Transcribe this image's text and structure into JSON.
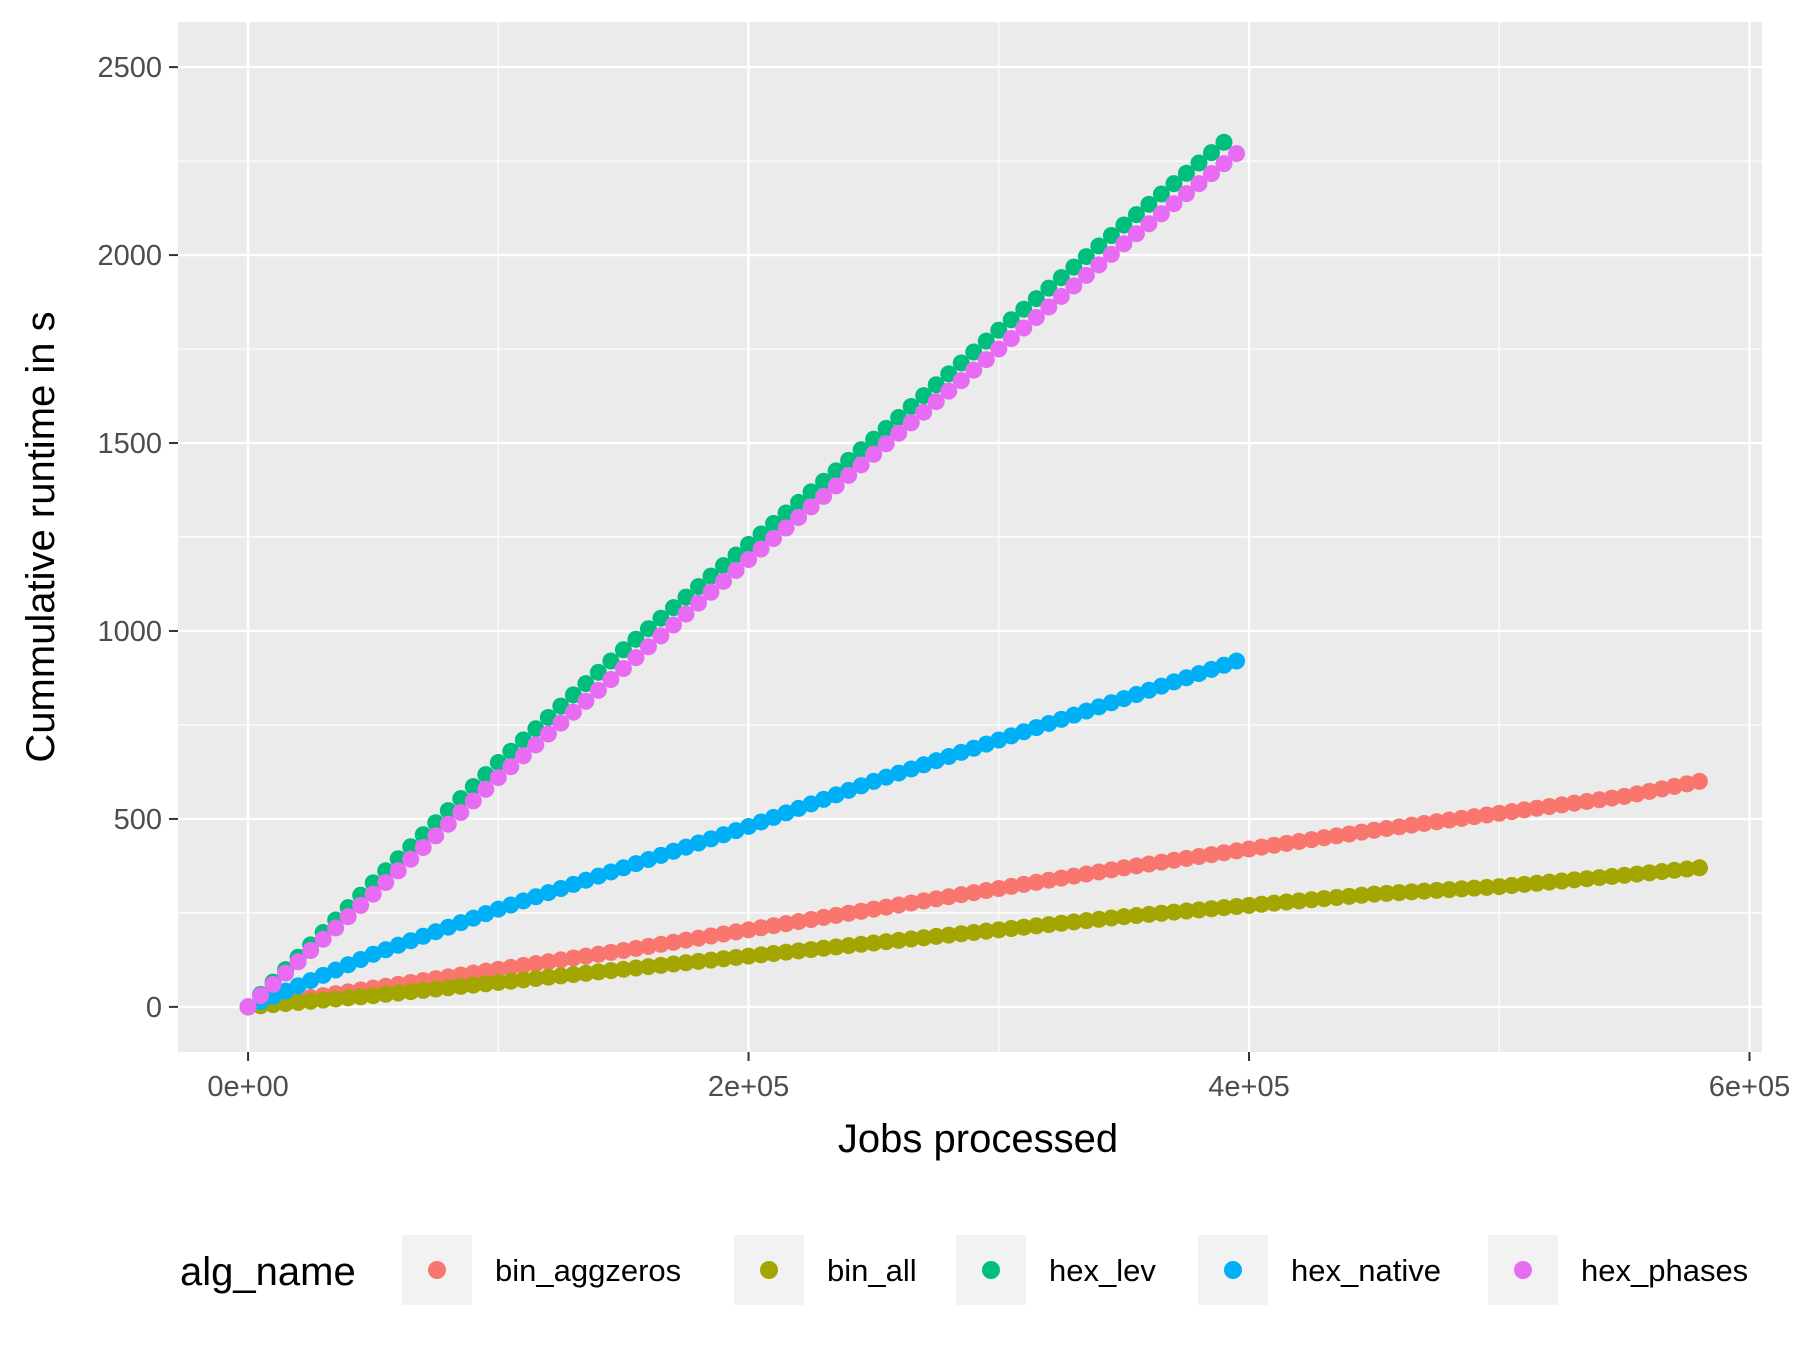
{
  "chart_data": {
    "type": "scatter",
    "title": "",
    "xlabel": "Jobs processed",
    "ylabel": "Cummulative runtime in s",
    "xlim": [
      -28000,
      605000
    ],
    "ylim": [
      -120,
      2620
    ],
    "x_ticks": [
      0,
      200000,
      400000,
      600000
    ],
    "x_tick_labels": [
      "0e+00",
      "2e+05",
      "4e+05",
      "6e+05"
    ],
    "y_ticks": [
      0,
      500,
      1000,
      1500,
      2000,
      2500
    ],
    "y_tick_labels": [
      "0",
      "500",
      "1000",
      "1500",
      "2000",
      "2500"
    ],
    "grid": true,
    "legend": {
      "title": "alg_name",
      "position": "bottom"
    },
    "series": [
      {
        "name": "bin_aggzeros",
        "color": "#F8766D",
        "x": [
          0,
          50000,
          100000,
          150000,
          200000,
          250000,
          300000,
          350000,
          400000,
          450000,
          500000,
          550000,
          580000
        ],
        "y": [
          0,
          50,
          100,
          150,
          205,
          260,
          315,
          370,
          420,
          470,
          515,
          560,
          600
        ]
      },
      {
        "name": "bin_all",
        "color": "#A3A500",
        "x": [
          0,
          50000,
          100000,
          150000,
          200000,
          250000,
          300000,
          350000,
          400000,
          450000,
          500000,
          550000,
          580000
        ],
        "y": [
          0,
          30,
          65,
          100,
          135,
          170,
          205,
          240,
          270,
          300,
          320,
          350,
          370
        ]
      },
      {
        "name": "hex_lev",
        "color": "#00BF7D",
        "x": [
          0,
          50000,
          100000,
          150000,
          200000,
          250000,
          300000,
          350000,
          390000
        ],
        "y": [
          0,
          330,
          650,
          950,
          1230,
          1510,
          1800,
          2080,
          2300
        ]
      },
      {
        "name": "hex_native",
        "color": "#00B0F6",
        "x": [
          0,
          50000,
          100000,
          150000,
          200000,
          250000,
          300000,
          350000,
          395000
        ],
        "y": [
          0,
          140,
          260,
          370,
          480,
          600,
          710,
          820,
          920
        ]
      },
      {
        "name": "hex_phases",
        "color": "#E76BF3",
        "x": [
          0,
          50000,
          100000,
          150000,
          200000,
          250000,
          300000,
          350000,
          395000
        ],
        "y": [
          0,
          300,
          610,
          900,
          1190,
          1470,
          1750,
          2030,
          2270
        ]
      }
    ]
  }
}
